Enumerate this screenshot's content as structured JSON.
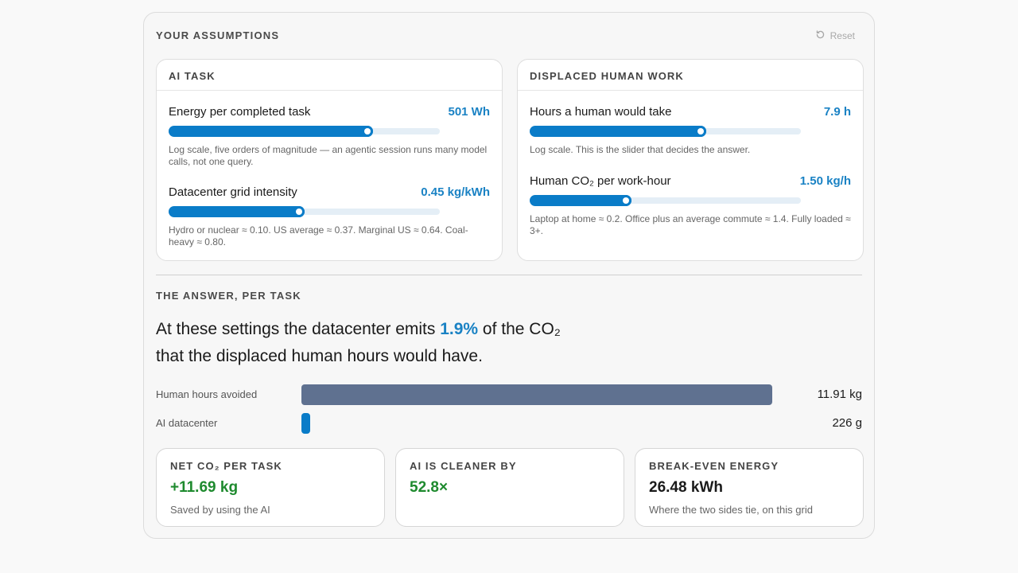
{
  "assumptions": {
    "heading": "YOUR ASSUMPTIONS",
    "reset_label": "Reset",
    "ai_task": {
      "heading": "AI TASK",
      "energy": {
        "label": "Energy per completed task",
        "value": "501 Wh",
        "fill_fraction": 0.755,
        "hint": "Log scale, five orders of magnitude — an agentic session runs many model calls, not one query."
      },
      "grid": {
        "label": "Datacenter grid intensity",
        "value": "0.45 kg/kWh",
        "fill_fraction": 0.5,
        "hint": "Hydro or nuclear ≈ 0.10. US average ≈ 0.37. Marginal US ≈ 0.64. Coal-heavy ≈ 0.80."
      }
    },
    "human_work": {
      "heading": "DISPLACED HUMAN WORK",
      "hours": {
        "label": "Hours a human would take",
        "value": "7.9 h",
        "fill_fraction": 0.65,
        "hint": "Log scale. This is the slider that decides the answer."
      },
      "co2": {
        "label": "Human CO₂ per work-hour",
        "value": "1.50 kg/h",
        "fill_fraction": 0.375,
        "hint": "Laptop at home ≈ 0.2. Office plus an average commute ≈ 1.4. Fully loaded ≈ 3+."
      }
    }
  },
  "answer": {
    "heading": "THE ANSWER, PER TASK",
    "text_before": "At these settings the datacenter emits ",
    "percent": "1.9%",
    "text_after": " of the CO₂ that the displaced human hours would have."
  },
  "bars": [
    {
      "label": "Human hours avoided",
      "value_text": "11.91 kg",
      "fraction": 1.0,
      "color": "#5f7190"
    },
    {
      "label": "AI datacenter",
      "value_text": "226 g",
      "fraction": 0.019,
      "color": "#0a7cc8"
    }
  ],
  "stats": [
    {
      "title": "NET CO₂ PER TASK",
      "value": "+11.69 kg",
      "sub": "Saved by using the AI",
      "color": "#1e8a2e"
    },
    {
      "title": "AI IS CLEANER BY",
      "value": "52.8×",
      "sub": "",
      "color": "#1e8a2e"
    },
    {
      "title": "BREAK-EVEN ENERGY",
      "value": "26.48 kWh",
      "sub": "Where the two sides tie, on this grid",
      "color": "#1a1a1a"
    }
  ]
}
